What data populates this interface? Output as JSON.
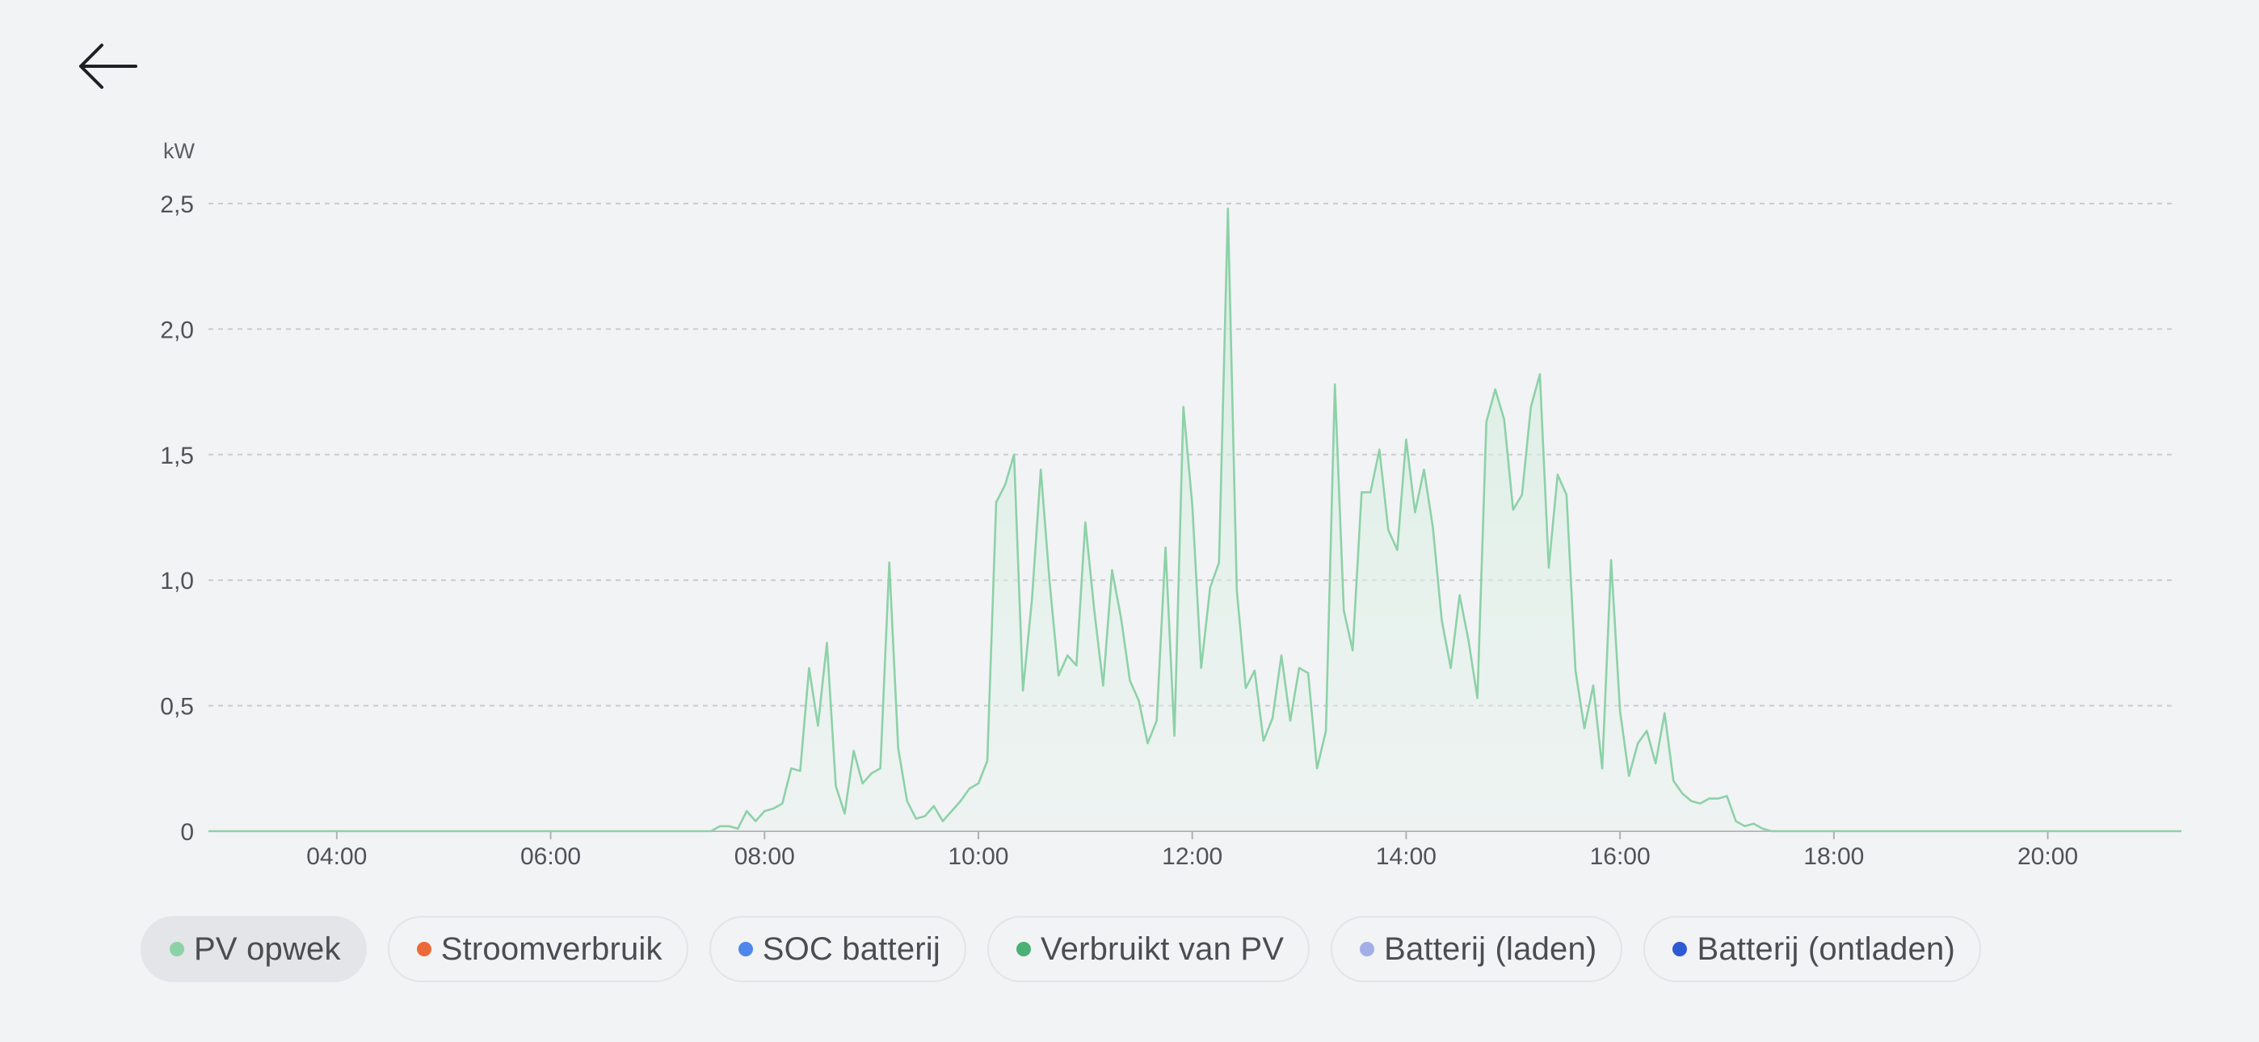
{
  "header": {
    "back_icon": "arrow-left-icon"
  },
  "legend": [
    {
      "label": "PV opwek",
      "color": "#8dd1a8",
      "active": true
    },
    {
      "label": "Stroomverbruik",
      "color": "#ec6a3a",
      "active": false
    },
    {
      "label": "SOC batterij",
      "color": "#4f86ec",
      "active": false
    },
    {
      "label": "Verbruikt van PV",
      "color": "#4caf74",
      "active": false
    },
    {
      "label": "Batterij (laden)",
      "color": "#a3aee6",
      "active": false
    },
    {
      "label": "Batterij (ontladen)",
      "color": "#2e5bd3",
      "active": false
    }
  ],
  "chart_data": {
    "type": "area",
    "ylabel": "kW",
    "ylim": [
      0,
      2.5
    ],
    "yticks": [
      "0",
      "0,5",
      "1,0",
      "1,5",
      "2,0",
      "2,5"
    ],
    "ytick_values": [
      0,
      0.5,
      1.0,
      1.5,
      2.0,
      2.5
    ],
    "xlim": [
      "02:48",
      "21:15"
    ],
    "xticks": [
      "04:00",
      "06:00",
      "08:00",
      "10:00",
      "12:00",
      "14:00",
      "16:00",
      "18:00",
      "20:00"
    ],
    "grid": "horizontal-dashed",
    "series": [
      {
        "name": "PV opwek",
        "color": "#8dd1a8",
        "x": [
          "02:48",
          "07:30",
          "07:35",
          "07:40",
          "07:45",
          "07:50",
          "07:55",
          "08:00",
          "08:05",
          "08:10",
          "08:15",
          "08:20",
          "08:25",
          "08:30",
          "08:35",
          "08:40",
          "08:45",
          "08:50",
          "08:55",
          "09:00",
          "09:05",
          "09:10",
          "09:15",
          "09:20",
          "09:25",
          "09:30",
          "09:35",
          "09:40",
          "09:45",
          "09:50",
          "09:55",
          "10:00",
          "10:05",
          "10:10",
          "10:15",
          "10:20",
          "10:25",
          "10:30",
          "10:35",
          "10:40",
          "10:45",
          "10:50",
          "10:55",
          "11:00",
          "11:05",
          "11:10",
          "11:15",
          "11:20",
          "11:25",
          "11:30",
          "11:35",
          "11:40",
          "11:45",
          "11:50",
          "11:55",
          "12:00",
          "12:05",
          "12:10",
          "12:15",
          "12:20",
          "12:25",
          "12:30",
          "12:35",
          "12:40",
          "12:45",
          "12:50",
          "12:55",
          "13:00",
          "13:05",
          "13:10",
          "13:15",
          "13:20",
          "13:25",
          "13:30",
          "13:35",
          "13:40",
          "13:45",
          "13:50",
          "13:55",
          "14:00",
          "14:05",
          "14:10",
          "14:15",
          "14:20",
          "14:25",
          "14:30",
          "14:35",
          "14:40",
          "14:45",
          "14:50",
          "14:55",
          "15:00",
          "15:05",
          "15:10",
          "15:15",
          "15:20",
          "15:25",
          "15:30",
          "15:35",
          "15:40",
          "15:45",
          "15:50",
          "15:55",
          "16:00",
          "16:05",
          "16:10",
          "16:15",
          "16:20",
          "16:25",
          "16:30",
          "16:35",
          "16:40",
          "16:45",
          "16:50",
          "16:55",
          "17:00",
          "17:05",
          "17:10",
          "17:15",
          "17:20",
          "17:25",
          "17:30",
          "21:15"
        ],
        "values": [
          0,
          0,
          0.02,
          0.02,
          0.01,
          0.08,
          0.04,
          0.08,
          0.09,
          0.11,
          0.25,
          0.24,
          0.65,
          0.42,
          0.75,
          0.18,
          0.07,
          0.32,
          0.19,
          0.23,
          0.25,
          1.07,
          0.33,
          0.12,
          0.05,
          0.06,
          0.1,
          0.04,
          0.08,
          0.12,
          0.17,
          0.19,
          0.28,
          1.31,
          1.38,
          1.5,
          0.56,
          0.92,
          1.44,
          0.99,
          0.62,
          0.7,
          0.66,
          1.23,
          0.88,
          0.58,
          1.04,
          0.85,
          0.6,
          0.52,
          0.35,
          0.44,
          1.13,
          0.38,
          1.69,
          1.3,
          0.65,
          0.97,
          1.07,
          2.48,
          0.96,
          0.57,
          0.64,
          0.36,
          0.45,
          0.7,
          0.44,
          0.65,
          0.63,
          0.25,
          0.4,
          1.78,
          0.88,
          0.72,
          1.35,
          1.35,
          1.52,
          1.2,
          1.12,
          1.56,
          1.27,
          1.44,
          1.21,
          0.84,
          0.65,
          0.94,
          0.76,
          0.53,
          1.63,
          1.76,
          1.64,
          1.28,
          1.34,
          1.69,
          1.82,
          1.05,
          1.42,
          1.34,
          0.64,
          0.41,
          0.58,
          0.25,
          1.08,
          0.48,
          0.22,
          0.35,
          0.4,
          0.27,
          0.47,
          0.2,
          0.15,
          0.12,
          0.11,
          0.13,
          0.13,
          0.14,
          0.04,
          0.02,
          0.03,
          0.01,
          0,
          0,
          0
        ]
      }
    ]
  }
}
